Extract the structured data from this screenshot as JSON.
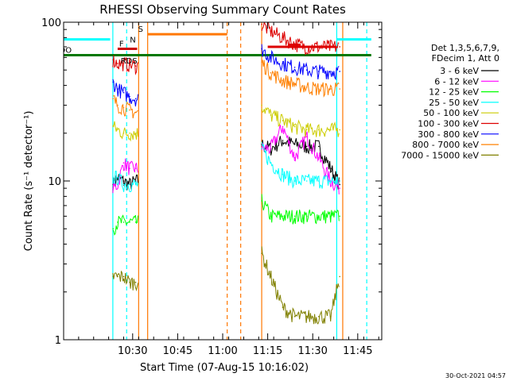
{
  "chart_data": {
    "type": "line",
    "title": "RHESSI Observing Summary Count Rates",
    "xlabel": "Start Time (07-Aug-15 10:16:02)",
    "ylabel": "Count Rate (s⁻¹ detector⁻¹)",
    "yscale": "log",
    "ylim": [
      1,
      100
    ],
    "y_ticks": [
      {
        "value": 1,
        "label": "1"
      },
      {
        "value": 10,
        "label": "10"
      },
      {
        "value": 100,
        "label": "100"
      }
    ],
    "x_range_min": [
      7,
      90
    ],
    "x_ticks": [
      {
        "value": 30,
        "label": "10:30"
      },
      {
        "value": 45,
        "label": "10:45"
      },
      {
        "value": 60,
        "label": "11:00"
      },
      {
        "value": 75,
        "label": "11:15"
      },
      {
        "value": 90,
        "label": "11:30"
      },
      {
        "value": 105,
        "label": "11:45"
      }
    ],
    "legend_header": [
      "Det 1,3,5,6,7,9,",
      "FDecim 1, Att 0"
    ],
    "legend_position": "right",
    "segments_min": [
      [
        23.4,
        32.0
      ],
      [
        73.0,
        99.0
      ]
    ],
    "series": [
      {
        "name": "3 - 6 keV",
        "color": "#000000",
        "values": [
          [
            23.5,
            9.5
          ],
          [
            25,
            10.5
          ],
          [
            27,
            10
          ],
          [
            29,
            9.5
          ],
          [
            31,
            10
          ],
          [
            73,
            17
          ],
          [
            76,
            16
          ],
          [
            80,
            18
          ],
          [
            84,
            17
          ],
          [
            88,
            16.5
          ],
          [
            92,
            16.5
          ],
          [
            96,
            12
          ],
          [
            99,
            9.5
          ]
        ]
      },
      {
        "name": "6 - 12 keV",
        "color": "#ff00ff",
        "values": [
          [
            23.5,
            9.0
          ],
          [
            25,
            9.5
          ],
          [
            27,
            13
          ],
          [
            29,
            12
          ],
          [
            31,
            12
          ],
          [
            73,
            16
          ],
          [
            76,
            16
          ],
          [
            80,
            22
          ],
          [
            84,
            14
          ],
          [
            88,
            19
          ],
          [
            92,
            14
          ],
          [
            96,
            10
          ],
          [
            99,
            9
          ]
        ]
      },
      {
        "name": "12 - 25 keV",
        "color": "#00ff00",
        "values": [
          [
            23.5,
            5.0
          ],
          [
            25,
            5.5
          ],
          [
            27,
            5.5
          ],
          [
            29,
            5.5
          ],
          [
            31,
            5.5
          ],
          [
            73,
            7.5
          ],
          [
            76,
            6
          ],
          [
            80,
            6
          ],
          [
            84,
            6
          ],
          [
            88,
            6
          ],
          [
            92,
            6
          ],
          [
            96,
            6
          ],
          [
            99,
            6
          ]
        ]
      },
      {
        "name": "25 - 50 keV",
        "color": "#00ffff",
        "values": [
          [
            23.5,
            10.5
          ],
          [
            25,
            10.5
          ],
          [
            27,
            9.5
          ],
          [
            29,
            9.5
          ],
          [
            31,
            9.5
          ],
          [
            73,
            16
          ],
          [
            76,
            13
          ],
          [
            80,
            11
          ],
          [
            84,
            10
          ],
          [
            88,
            10
          ],
          [
            92,
            10
          ],
          [
            96,
            10
          ],
          [
            99,
            10
          ]
        ]
      },
      {
        "name": "50 - 100 keV",
        "color": "#cccc00",
        "values": [
          [
            23.5,
            22
          ],
          [
            25,
            21
          ],
          [
            27,
            20
          ],
          [
            29,
            20
          ],
          [
            31,
            20
          ],
          [
            73,
            30
          ],
          [
            76,
            26
          ],
          [
            80,
            24
          ],
          [
            84,
            22
          ],
          [
            88,
            21
          ],
          [
            92,
            21
          ],
          [
            96,
            21
          ],
          [
            99,
            21
          ]
        ]
      },
      {
        "name": "100 - 300 keV",
        "color": "#dd0000",
        "values": [
          [
            23.5,
            58
          ],
          [
            25,
            55
          ],
          [
            27,
            55
          ],
          [
            29,
            54
          ],
          [
            31,
            53
          ],
          [
            73,
            97
          ],
          [
            76,
            88
          ],
          [
            80,
            80
          ],
          [
            84,
            73
          ],
          [
            88,
            70
          ],
          [
            92,
            70
          ],
          [
            96,
            70
          ],
          [
            99,
            70
          ]
        ]
      },
      {
        "name": "300 - 800 keV",
        "color": "#0000ff",
        "values": [
          [
            23.5,
            42
          ],
          [
            25,
            38
          ],
          [
            27,
            36
          ],
          [
            29,
            34
          ],
          [
            31,
            33
          ],
          [
            73,
            68
          ],
          [
            76,
            60
          ],
          [
            80,
            55
          ],
          [
            84,
            52
          ],
          [
            88,
            50
          ],
          [
            92,
            49
          ],
          [
            96,
            49
          ],
          [
            99,
            49
          ]
        ]
      },
      {
        "name": "800 - 7000 keV",
        "color": "#ff8000",
        "values": [
          [
            23.5,
            33
          ],
          [
            25,
            30
          ],
          [
            27,
            29
          ],
          [
            29,
            28
          ],
          [
            31,
            27
          ],
          [
            73,
            56
          ],
          [
            76,
            48
          ],
          [
            80,
            43
          ],
          [
            84,
            41
          ],
          [
            88,
            39
          ],
          [
            92,
            38
          ],
          [
            96,
            38
          ],
          [
            99,
            38
          ]
        ]
      },
      {
        "name": "7000 - 15000 keV",
        "color": "#808000",
        "values": [
          [
            23.5,
            2.5
          ],
          [
            25,
            2.5
          ],
          [
            27,
            2.5
          ],
          [
            29,
            2.3
          ],
          [
            31,
            2.3
          ],
          [
            73,
            3.5
          ],
          [
            76,
            2.5
          ],
          [
            80,
            1.6
          ],
          [
            84,
            1.4
          ],
          [
            88,
            1.4
          ],
          [
            92,
            1.4
          ],
          [
            96,
            1.4
          ],
          [
            99,
            2.5
          ]
        ]
      }
    ],
    "flag_bars": [
      {
        "label": "RDO",
        "color": "#007700",
        "y": 62,
        "ranges": [
          [
            0,
            109.5
          ]
        ]
      },
      {
        "label": "",
        "color": "#00ffff",
        "y": 78,
        "ranges": [
          [
            0,
            22.5
          ],
          [
            98,
            109.5
          ]
        ]
      },
      {
        "label": "S",
        "color": "#ff7700",
        "y": 84,
        "ranges": [
          [
            35,
            61.5
          ]
        ]
      },
      {
        "label": "F",
        "color": "#cc0000",
        "y": 68,
        "ranges": [
          [
            25,
            31.5
          ]
        ]
      },
      {
        "label": "N",
        "color": "#00bbff",
        "y": 72,
        "ranges": []
      },
      {
        "label": "",
        "color": "#dd0000",
        "y": 70,
        "ranges": [
          [
            75,
            98
          ]
        ]
      },
      {
        "label": "",
        "color": "#dd0000",
        "y": 72,
        "ranges": [
          [
            82,
            86
          ]
        ]
      }
    ],
    "flag_extra_labels": [
      {
        "label": "RDS",
        "color": "#007700"
      }
    ],
    "vlines": [
      {
        "x": 23.4,
        "color": "#00ffff",
        "dash": false
      },
      {
        "x": 28.0,
        "color": "#00ffff",
        "dash": true
      },
      {
        "x": 32.0,
        "color": "#ff7700",
        "dash": false
      },
      {
        "x": 35.0,
        "color": "#ff7700",
        "dash": false
      },
      {
        "x": 61.5,
        "color": "#ff7700",
        "dash": true
      },
      {
        "x": 66.0,
        "color": "#ff7700",
        "dash": true
      },
      {
        "x": 73.0,
        "color": "#ff7700",
        "dash": false
      },
      {
        "x": 98.0,
        "color": "#00ffff",
        "dash": false
      },
      {
        "x": 100.0,
        "color": "#ff7700",
        "dash": false
      },
      {
        "x": 108.0,
        "color": "#00ffff",
        "dash": true
      }
    ],
    "timestamp": "30-Oct-2021 04:57"
  }
}
